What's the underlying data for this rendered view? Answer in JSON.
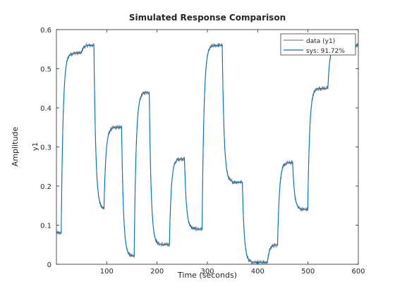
{
  "figure": {
    "background": "#ffffff",
    "axes_color": "#262626"
  },
  "chart_data": {
    "type": "line",
    "title": "Simulated Response Comparison",
    "xlabel": "Time (seconds)",
    "ylabel": "Amplitude",
    "channel_label": "y1",
    "xlim": [
      0,
      600
    ],
    "ylim": [
      0,
      0.6
    ],
    "xticks": [
      100,
      200,
      300,
      400,
      500,
      600
    ],
    "yticks": [
      0,
      0.1,
      0.2,
      0.3,
      0.4,
      0.5,
      0.6
    ],
    "ytick_labels": [
      "0",
      "0.1",
      "0.2",
      "0.3",
      "0.4",
      "0.5",
      "0.6"
    ],
    "grid": false,
    "legend": {
      "location": "top-right",
      "entries": [
        {
          "label": "data (y1)",
          "color": "#808080"
        },
        {
          "label": "sys: 91.72%",
          "color": "#0072BD"
        }
      ]
    },
    "series": [
      {
        "name": "data (y1)",
        "color": "#808080",
        "noise_amplitude": 0.006,
        "levels": [
          [
            0,
            0.08
          ],
          [
            10,
            0.54
          ],
          [
            50,
            0.56
          ],
          [
            75,
            0.14
          ],
          [
            95,
            0.35
          ],
          [
            130,
            0.02
          ],
          [
            155,
            0.44
          ],
          [
            185,
            0.05
          ],
          [
            225,
            0.27
          ],
          [
            255,
            0.09
          ],
          [
            290,
            0.56
          ],
          [
            330,
            0.21
          ],
          [
            370,
            0.005
          ],
          [
            420,
            0.05
          ],
          [
            440,
            0.26
          ],
          [
            470,
            0.14
          ],
          [
            500,
            0.45
          ],
          [
            540,
            0.56
          ],
          [
            600,
            0.56
          ]
        ]
      },
      {
        "name": "sys: 91.72%",
        "color": "#0072BD",
        "levels": [
          [
            0,
            0.08
          ],
          [
            10,
            0.54
          ],
          [
            50,
            0.56
          ],
          [
            75,
            0.14
          ],
          [
            95,
            0.35
          ],
          [
            130,
            0.02
          ],
          [
            155,
            0.44
          ],
          [
            185,
            0.05
          ],
          [
            225,
            0.27
          ],
          [
            255,
            0.09
          ],
          [
            290,
            0.56
          ],
          [
            330,
            0.21
          ],
          [
            370,
            0.005
          ],
          [
            420,
            0.05
          ],
          [
            440,
            0.26
          ],
          [
            470,
            0.14
          ],
          [
            500,
            0.45
          ],
          [
            540,
            0.56
          ],
          [
            600,
            0.56
          ]
        ]
      }
    ]
  }
}
